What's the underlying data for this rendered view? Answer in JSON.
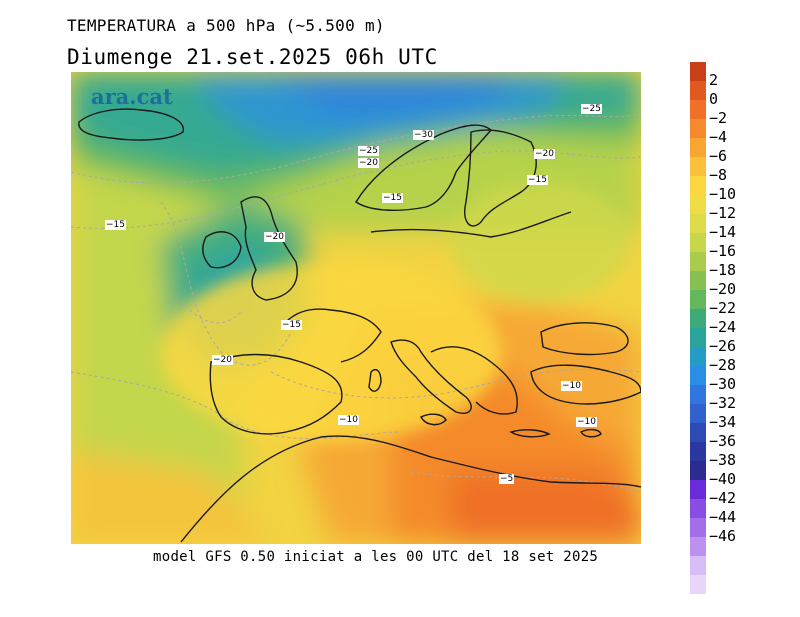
{
  "title_line1": "TEMPERATURA a 500 hPa (~5.500 m)",
  "title_line2": "Diumenge  21.set.2025 06h UTC",
  "footer": "model GFS 0.50 iniciat a les 00 UTC del 18 set 2025",
  "logo": "ara.cat",
  "legend": {
    "colors": [
      "#c8401a",
      "#e05a20",
      "#ef7026",
      "#f48a2c",
      "#f7a632",
      "#fbc13a",
      "#fcd740",
      "#f0dd45",
      "#dddc48",
      "#c7d64a",
      "#a9cc4c",
      "#88c152",
      "#63b75d",
      "#3eaa78",
      "#2aa39a",
      "#249dc4",
      "#2a8ee4",
      "#2f77df",
      "#3061cc",
      "#2e4ab5",
      "#2a39a0",
      "#2c2b8f",
      "#6a2cd8",
      "#8a4de3",
      "#a56ee9",
      "#bd92ef",
      "#d6bdf5",
      "#e8d6fa"
    ],
    "labels": [
      "2",
      "0",
      "−2",
      "−4",
      "−6",
      "−8",
      "−10",
      "−12",
      "−14",
      "−16",
      "−18",
      "−20",
      "−22",
      "−24",
      "−26",
      "−28",
      "−30",
      "−32",
      "−34",
      "−36",
      "−38",
      "−40",
      "−42",
      "−44",
      "−46"
    ]
  },
  "contour_labels": [
    {
      "name": "contour-label-minus25-ne",
      "text": "−25"
    },
    {
      "name": "contour-label-minus30",
      "text": "−30"
    },
    {
      "name": "contour-label-minus25-norway",
      "text": "−25"
    },
    {
      "name": "contour-label-minus20-norway",
      "text": "−20"
    },
    {
      "name": "contour-label-minus20-east",
      "text": "−20"
    },
    {
      "name": "contour-label-minus15-baltic",
      "text": "−15"
    },
    {
      "name": "contour-label-minus15-denmark",
      "text": "−15"
    },
    {
      "name": "contour-label-minus15-atlantic",
      "text": "−15"
    },
    {
      "name": "contour-label-minus20-britain",
      "text": "−20"
    },
    {
      "name": "contour-label-minus15-france",
      "text": "−15"
    },
    {
      "name": "contour-label-minus20-iberia",
      "text": "−20"
    },
    {
      "name": "contour-label-minus10-balkans",
      "text": "−10"
    },
    {
      "name": "contour-label-minus10-med",
      "text": "−10"
    },
    {
      "name": "contour-label-minus10-turkey",
      "text": "−10"
    },
    {
      "name": "contour-label-minus5",
      "text": "−5"
    }
  ]
}
